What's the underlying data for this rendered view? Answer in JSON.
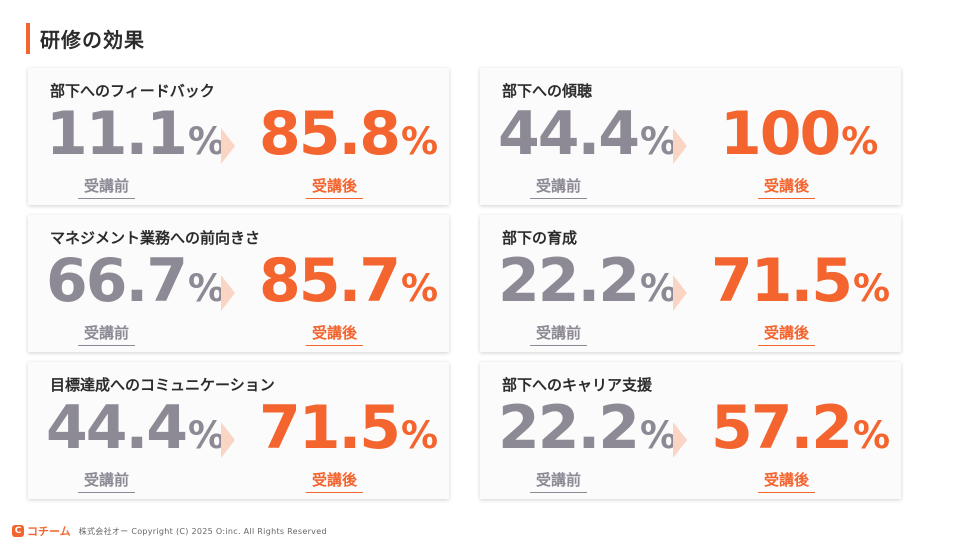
{
  "title": "研修の効果",
  "cards": [
    {
      "title": "部下へのフィードバック",
      "before": {
        "value": "11.1",
        "unit": "%",
        "label": "受講前"
      },
      "after": {
        "value": "85.8",
        "unit": "%",
        "label": "受講後"
      }
    },
    {
      "title": "部下への傾聴",
      "before": {
        "value": "44.4",
        "unit": "%",
        "label": "受講前"
      },
      "after": {
        "value": "100",
        "unit": "%",
        "label": "受講後"
      }
    },
    {
      "title": "マネジメント業務への前向きさ",
      "before": {
        "value": "66.7",
        "unit": "%",
        "label": "受講前"
      },
      "after": {
        "value": "85.7",
        "unit": "%",
        "label": "受講後"
      }
    },
    {
      "title": "部下の育成",
      "before": {
        "value": "22.2",
        "unit": "%",
        "label": "受講前"
      },
      "after": {
        "value": "71.5",
        "unit": "%",
        "label": "受講後"
      }
    },
    {
      "title": "目標達成へのコミュニケーション",
      "before": {
        "value": "44.4",
        "unit": "%",
        "label": "受講前"
      },
      "after": {
        "value": "71.5",
        "unit": "%",
        "label": "受講後"
      }
    },
    {
      "title": "部下へのキャリア支援",
      "before": {
        "value": "22.2",
        "unit": "%",
        "label": "受講前"
      },
      "after": {
        "value": "57.2",
        "unit": "%",
        "label": "受講後"
      }
    }
  ],
  "footer": {
    "logo_mark": "C",
    "logo_text": "コチーム",
    "copyright": "株式会社オー Copyright (C) 2025 O:inc. All Rights Reserved"
  },
  "colors": {
    "accent": "#f4642e",
    "muted": "#8d8a96",
    "chevron": "#fbd5c4"
  }
}
